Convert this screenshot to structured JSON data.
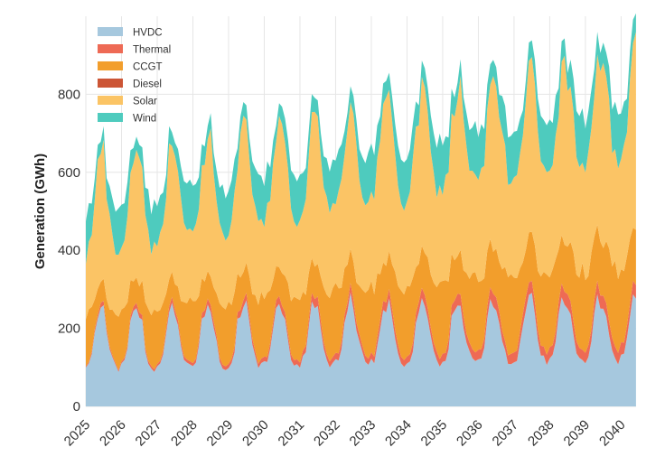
{
  "chart_data": {
    "type": "area",
    "stacked": true,
    "title": "",
    "xlabel": "",
    "ylabel": "Generation (GWh)",
    "ylim": [
      0,
      1000
    ],
    "xlim": [
      2025.0,
      2040.42
    ],
    "yticks": [
      0,
      200,
      400,
      600,
      800
    ],
    "xticks": [
      2025,
      2026,
      2027,
      2028,
      2029,
      2030,
      2031,
      2032,
      2033,
      2034,
      2035,
      2036,
      2037,
      2038,
      2039,
      2040
    ],
    "x_start": "2025-01",
    "x_frequency": "monthly",
    "grid": true,
    "legend_position": "top-left",
    "series": [
      {
        "name": "HVDC",
        "color": "#a6c8de",
        "monthly_profile": [
          100,
          110,
          140,
          200,
          240,
          255,
          250,
          200,
          150,
          115,
          100,
          95
        ],
        "trend_per_year": 1.5
      },
      {
        "name": "Thermal",
        "color": "#ee6a55",
        "monthly_profile": [
          3,
          4,
          6,
          8,
          10,
          11,
          11,
          9,
          6,
          4,
          3,
          3
        ],
        "trend_per_year": 1.8
      },
      {
        "name": "CCGT",
        "color": "#f29e2c",
        "monthly_profile": [
          130,
          125,
          110,
          80,
          60,
          55,
          58,
          75,
          100,
          120,
          130,
          135
        ],
        "trend_per_year": 5.0
      },
      {
        "name": "Diesel",
        "color": "#cc5535",
        "monthly_profile": [
          0,
          0,
          0,
          0,
          0,
          0,
          0,
          0,
          0,
          0,
          0,
          0
        ],
        "trend_per_year": 0
      },
      {
        "name": "Solar",
        "color": "#fbc465",
        "monthly_profile": [
          150,
          170,
          200,
          250,
          300,
          330,
          320,
          270,
          220,
          180,
          155,
          145
        ],
        "trend_per_year": 9.0
      },
      {
        "name": "Wind",
        "color": "#4ecbbe",
        "monthly_profile": [
          110,
          100,
          80,
          55,
          40,
          30,
          35,
          50,
          75,
          95,
          110,
          115
        ],
        "trend_per_year": 1.0
      }
    ],
    "n_months": 186
  }
}
